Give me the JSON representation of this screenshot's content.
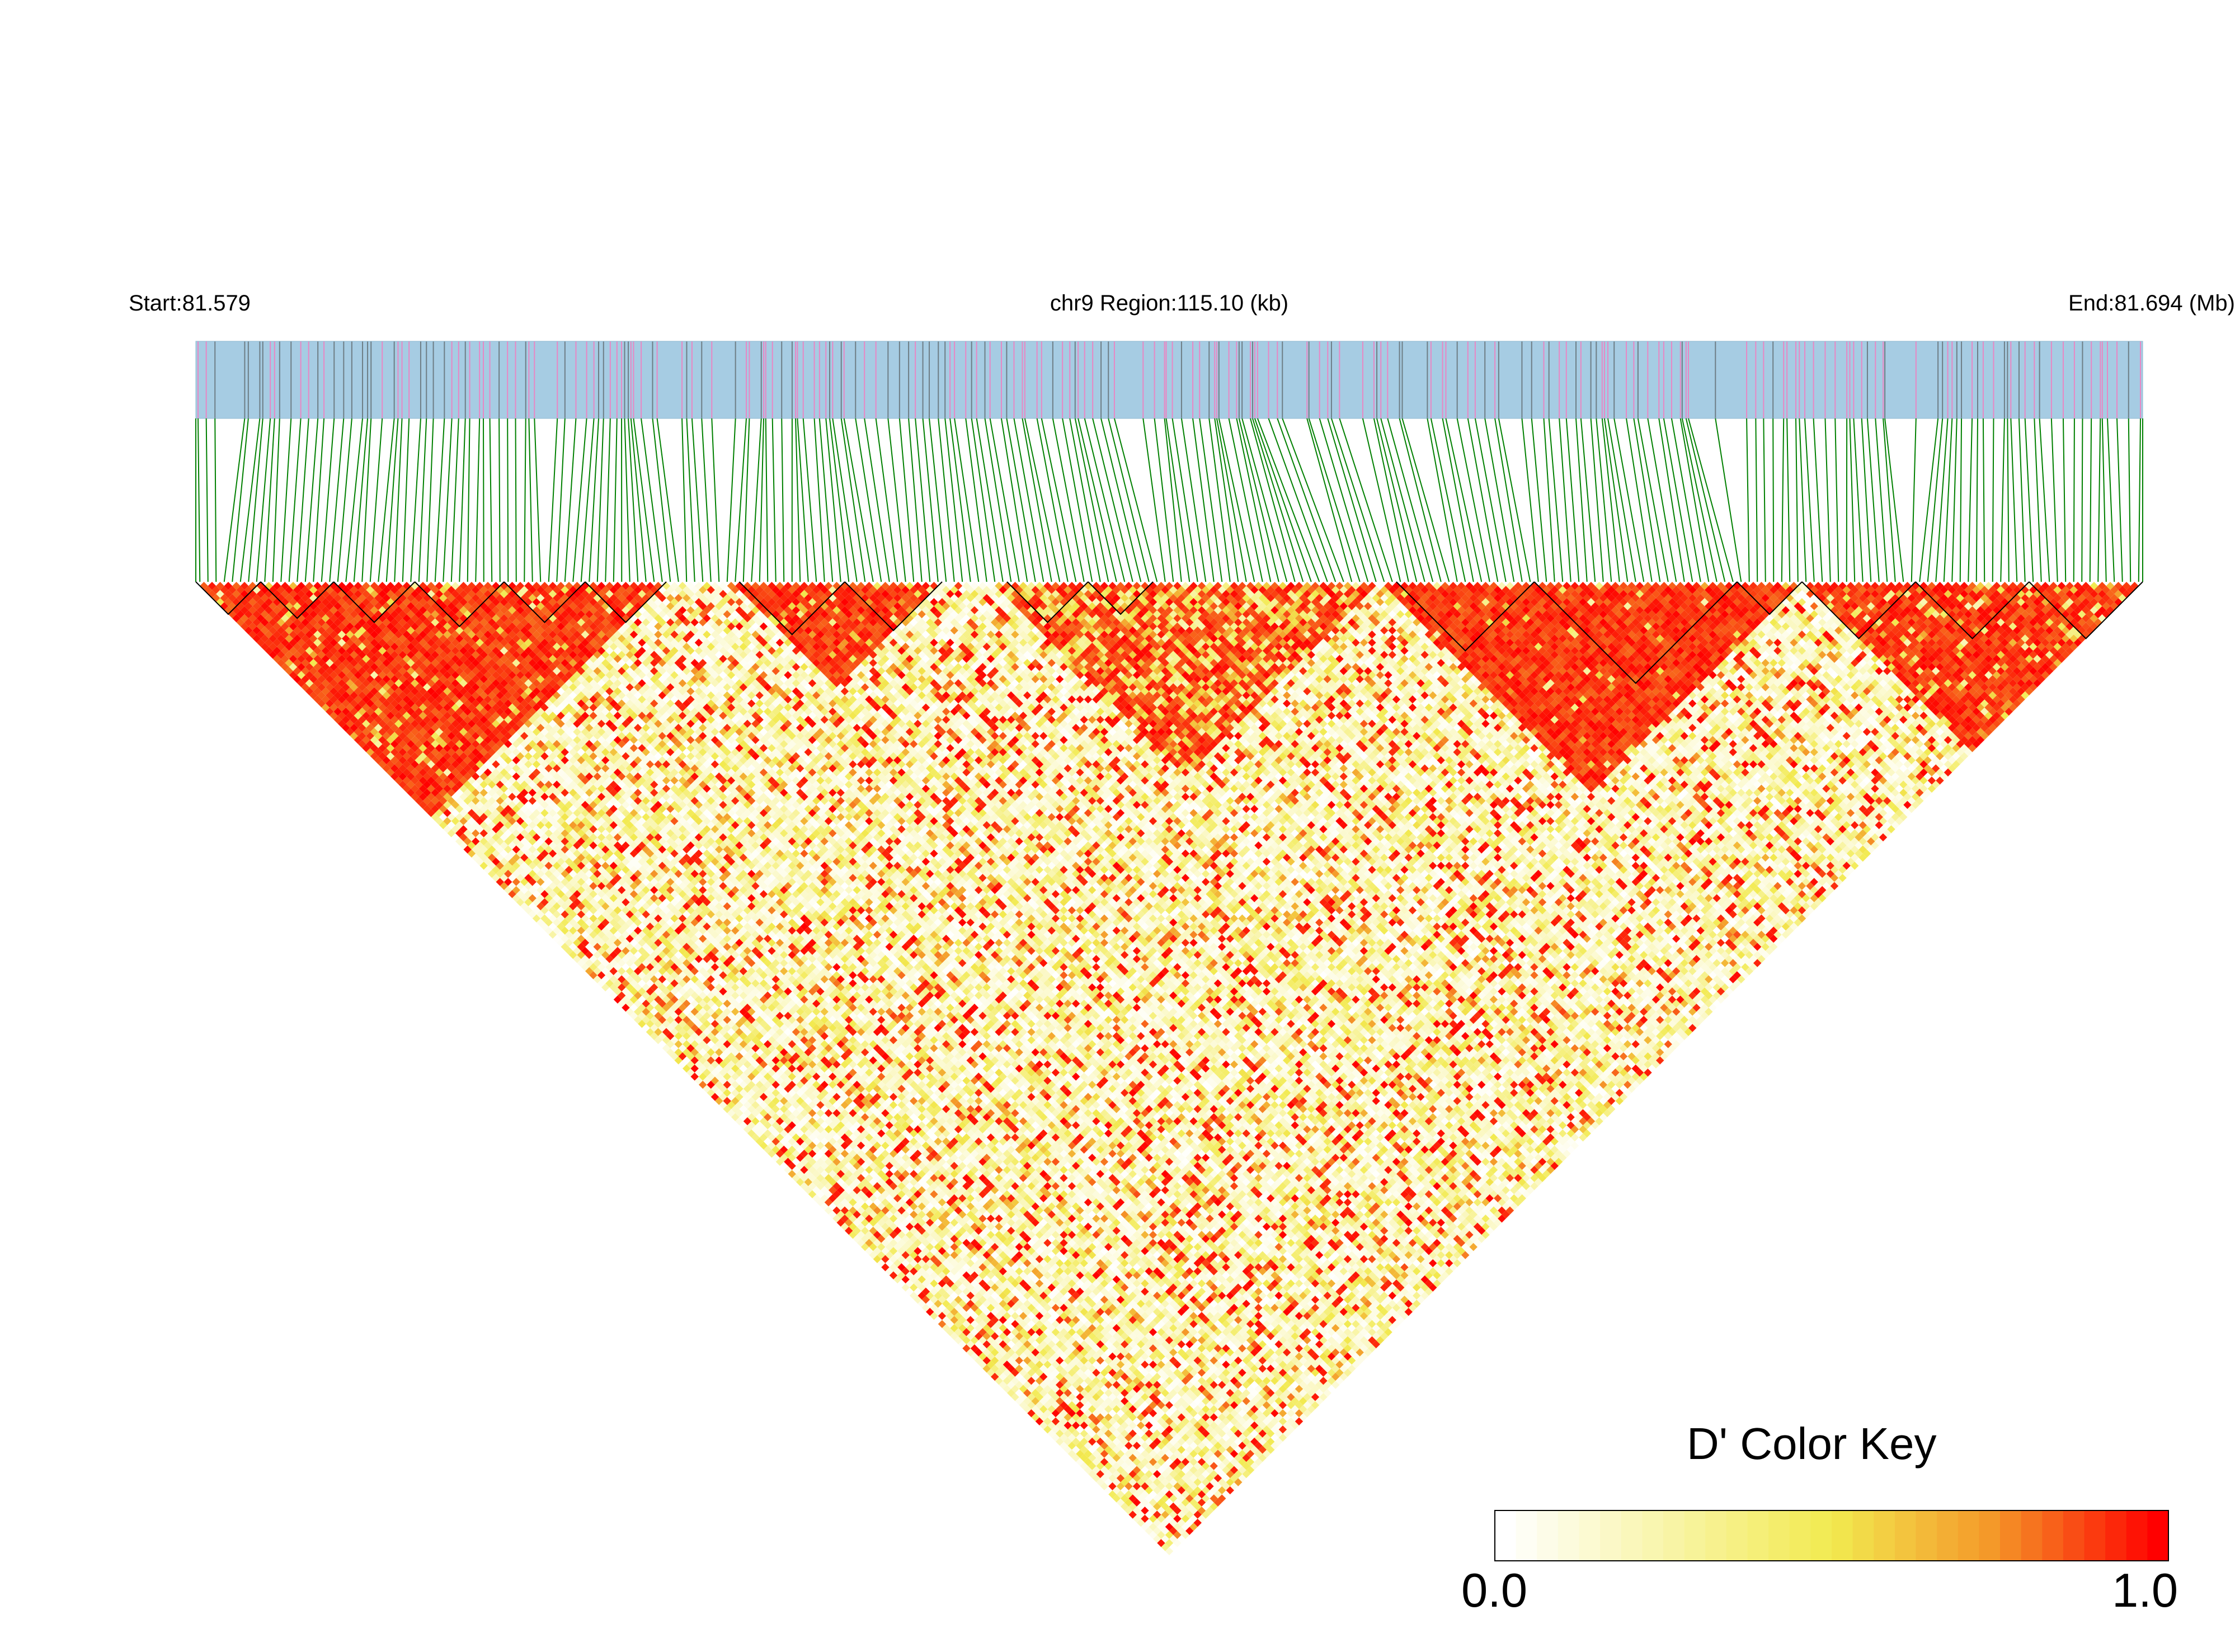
{
  "header": {
    "start_label": "Start:81.579",
    "region_label": "chr9 Region:115.10 (kb)",
    "end_label": "End:81.694 (Mb)"
  },
  "colors": {
    "track_fill": "#a6cce3",
    "variant_pink": "#e887c4",
    "variant_gray": "#6e7e86",
    "connector": "#008000",
    "ld_low": "#ffffff",
    "ld_mid": "#f0e84a",
    "ld_high": "#ff0000"
  },
  "chart_data": {
    "type": "heatmap",
    "subtype": "linkage-disequilibrium-triangle",
    "metric": "D'",
    "chromosome": "chr9",
    "start_mb": 81.579,
    "end_mb": 81.694,
    "region_kb": 115.1,
    "snp_count": 240,
    "haplotype_blocks": [
      {
        "from_snp": 0,
        "to_snp": 8
      },
      {
        "from_snp": 8,
        "to_snp": 17
      },
      {
        "from_snp": 17,
        "to_snp": 27
      },
      {
        "from_snp": 27,
        "to_snp": 38
      },
      {
        "from_snp": 38,
        "to_snp": 48
      },
      {
        "from_snp": 48,
        "to_snp": 58
      },
      {
        "from_snp": 67,
        "to_snp": 80
      },
      {
        "from_snp": 80,
        "to_snp": 92
      },
      {
        "from_snp": 100,
        "to_snp": 110
      },
      {
        "from_snp": 110,
        "to_snp": 118
      },
      {
        "from_snp": 148,
        "to_snp": 165
      },
      {
        "from_snp": 165,
        "to_snp": 190
      },
      {
        "from_snp": 190,
        "to_snp": 198
      },
      {
        "from_snp": 198,
        "to_snp": 212
      },
      {
        "from_snp": 212,
        "to_snp": 226
      },
      {
        "from_snp": 226,
        "to_snp": 240
      }
    ],
    "high_ld_regions": [
      {
        "from_snp": 0,
        "to_snp": 58,
        "level": 0.9
      },
      {
        "from_snp": 66,
        "to_snp": 92,
        "level": 0.92
      },
      {
        "from_snp": 98,
        "to_snp": 146,
        "level": 0.6
      },
      {
        "from_snp": 146,
        "to_snp": 198,
        "level": 0.97
      },
      {
        "from_snp": 198,
        "to_snp": 240,
        "level": 0.85
      }
    ],
    "color_key": {
      "title": "D' Color Key",
      "min_label": "0.0",
      "max_label": "1.0",
      "range": [
        0.0,
        1.0
      ],
      "steps": 32
    }
  }
}
